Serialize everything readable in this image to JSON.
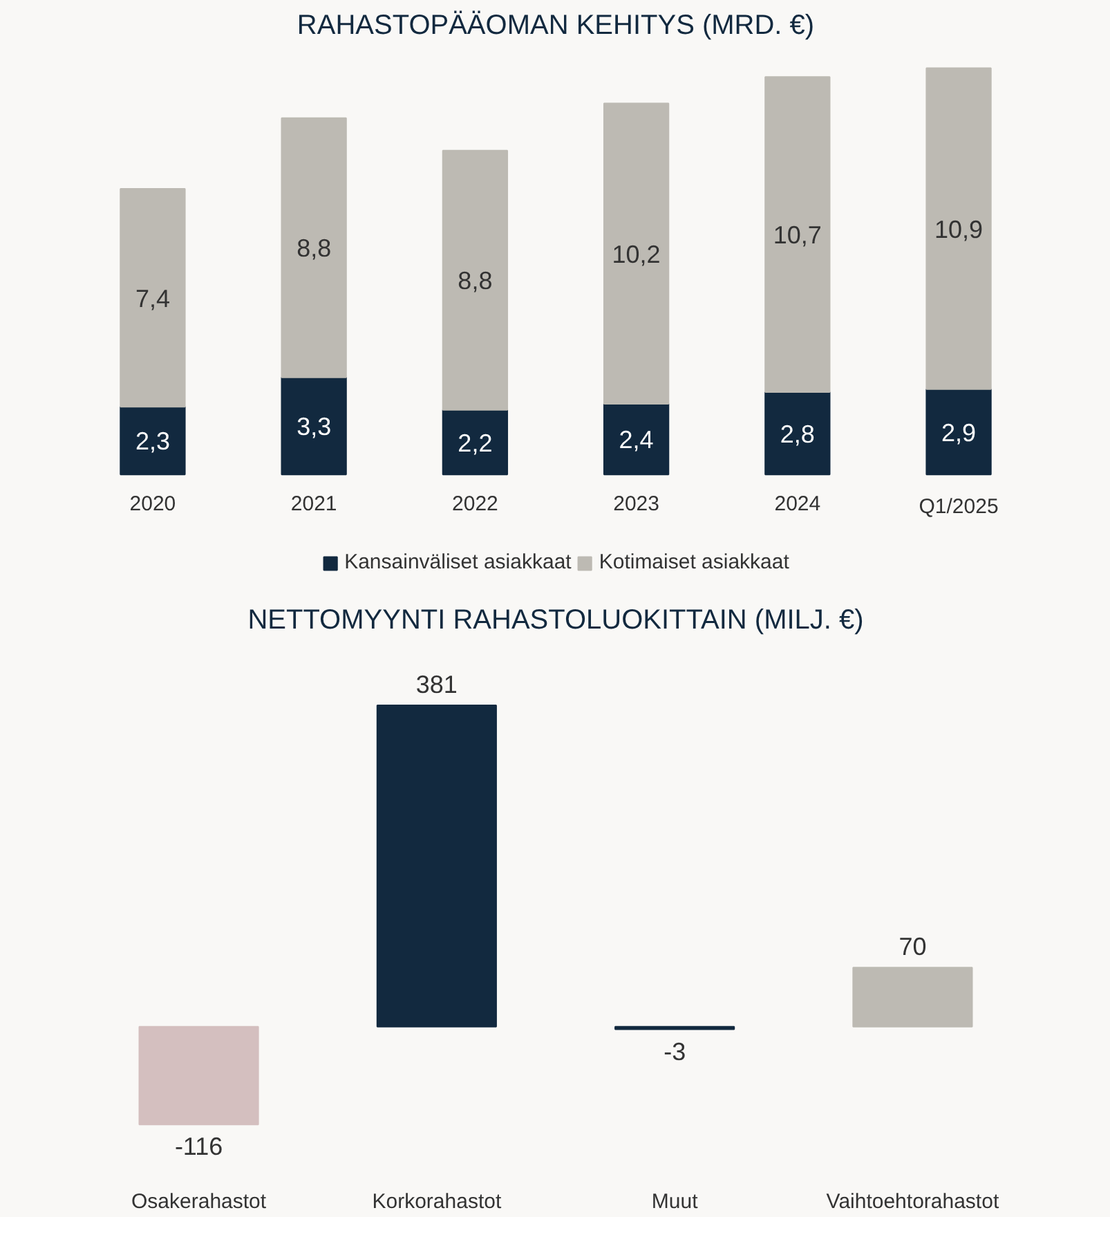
{
  "chart_data": [
    {
      "type": "bar",
      "title": "RAHASTOPÄÄOMAN KEHITYS (MRD. €)",
      "categories": [
        "2020",
        "2021",
        "2022",
        "2023",
        "2024",
        "Q1/2025"
      ],
      "stacked": true,
      "legend": "bottom",
      "grid": false,
      "tick_labels": "x",
      "series": [
        {
          "name": "Kansainväliset asiakkaat",
          "color": "#12293f",
          "values": [
            2.3,
            3.3,
            2.2,
            2.4,
            2.8,
            2.9
          ],
          "value_labels": [
            "2,3",
            "3,3",
            "2,2",
            "2,4",
            "2,8",
            "2,9"
          ]
        },
        {
          "name": "Kotimaiset asiakkaat",
          "color": "#bdbab3",
          "values": [
            7.4,
            8.8,
            8.8,
            10.2,
            10.7,
            10.9
          ],
          "value_labels": [
            "7,4",
            "8,8",
            "8,8",
            "10,2",
            "10,7",
            "10,9"
          ]
        }
      ]
    },
    {
      "type": "bar",
      "title": "NETTOMYYNTI RAHASTOLUOKITTAIN (MILJ. €)",
      "categories": [
        "Osakerahastot",
        "Korkorahastot",
        "Muut",
        "Vaihtoehtorahastot"
      ],
      "values": [
        -116,
        381,
        -3,
        70
      ],
      "colors": [
        "#d4bfbf",
        "#12293f",
        "#12293f",
        "#bdbab3"
      ],
      "data_labels": true,
      "grid": false,
      "tick_labels": "x"
    }
  ]
}
